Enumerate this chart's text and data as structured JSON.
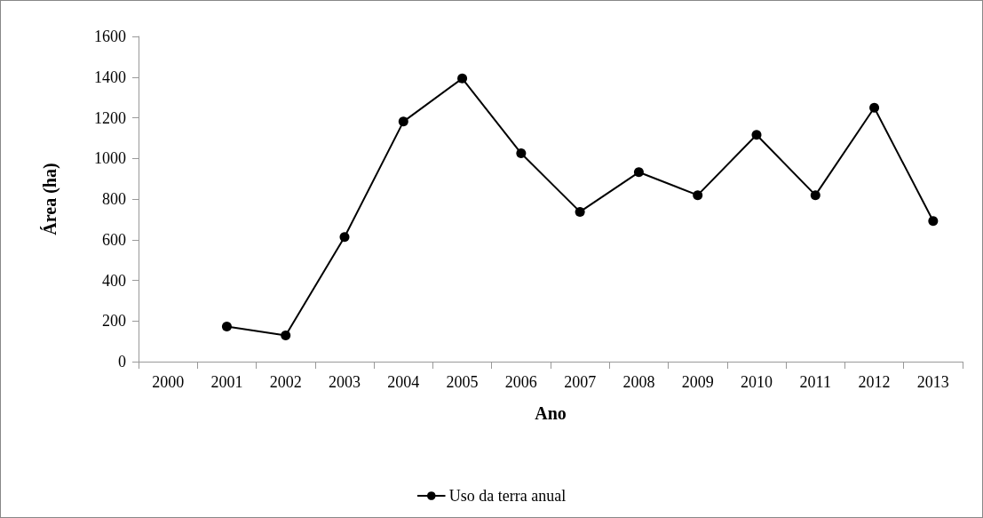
{
  "chart_data": {
    "type": "line",
    "xlabel": "Ano",
    "ylabel": "Área (ha)",
    "categories": [
      "2000",
      "2001",
      "2002",
      "2003",
      "2004",
      "2005",
      "2006",
      "2007",
      "2008",
      "2009",
      "2010",
      "2011",
      "2012",
      "2013"
    ],
    "series": [
      {
        "name": "Uso da terra anual",
        "color": "#000000",
        "values": [
          null,
          173,
          129,
          613,
          1181,
          1393,
          1025,
          737,
          932,
          819,
          1116,
          819,
          1249,
          692
        ]
      }
    ],
    "ylim": [
      0,
      1600
    ],
    "yticks": [
      0,
      200,
      400,
      600,
      800,
      1000,
      1200,
      1400,
      1600
    ],
    "grid": false,
    "legend": "bottom",
    "marker": "circle",
    "line_style": "solid"
  }
}
